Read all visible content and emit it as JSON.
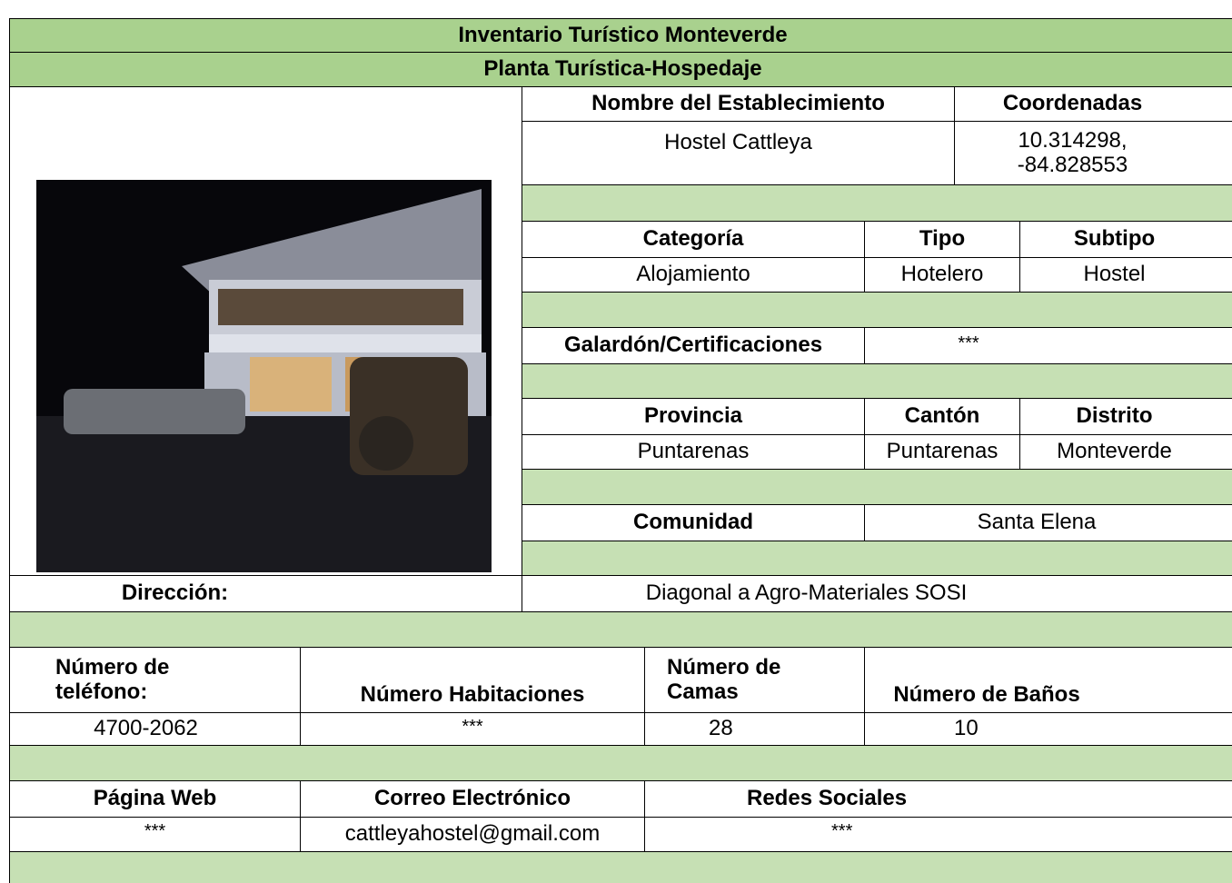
{
  "header": {
    "title": "Inventario Turístico Monteverde",
    "subtitle": "Planta Turística-Hospedaje"
  },
  "establishment": {
    "name_label": "Nombre del Establecimiento",
    "name": "Hostel Cattleya",
    "coords_label": "Coordenadas",
    "coords": "10.314298, -84.828553"
  },
  "classification": {
    "category_label": "Categoría",
    "type_label": "Tipo",
    "subtype_label": "Subtipo",
    "category": "Alojamiento",
    "type": "Hotelero",
    "subtype": "Hostel"
  },
  "award": {
    "label": "Galardón/Certificaciones",
    "value": "***"
  },
  "location": {
    "province_label": "Provincia",
    "canton_label": "Cantón",
    "district_label": "Distrito",
    "province": "Puntarenas",
    "canton": "Puntarenas",
    "district": "Monteverde",
    "community_label": "Comunidad",
    "community": "Santa Elena",
    "address_label": "Dirección:",
    "address": "Diagonal a Agro-Materiales SOSI"
  },
  "capacity": {
    "phone_label": "Número de teléfono:",
    "rooms_label": "Número Habitaciones",
    "beds_label": "Número de Camas",
    "baths_label": "Número de Baños",
    "phone": "4700-2062",
    "rooms": "***",
    "beds": "28",
    "baths": "10"
  },
  "contact": {
    "web_label": "Página Web",
    "email_label": "Correo Electrónico",
    "social_label": "Redes Sociales",
    "web": "***",
    "email": "cattleyahostel@gmail.com",
    "social": "***"
  }
}
